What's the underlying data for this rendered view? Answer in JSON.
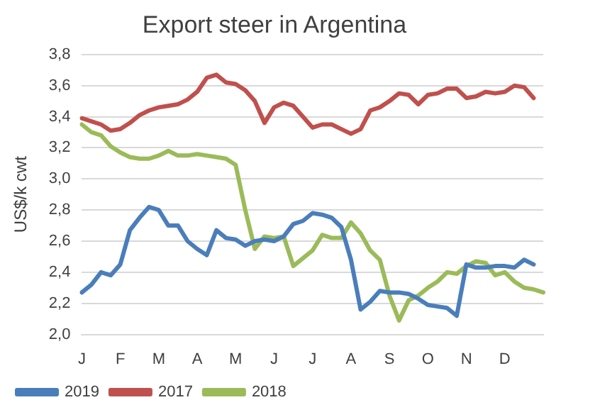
{
  "chart_data": {
    "type": "line",
    "title": "Export steer in Argentina",
    "ylabel": "US$/k cwt",
    "categories": [
      "J",
      null,
      null,
      null,
      "F",
      null,
      null,
      null,
      "M",
      null,
      null,
      null,
      "A",
      null,
      null,
      null,
      "M",
      null,
      null,
      null,
      "J",
      null,
      null,
      null,
      "J",
      null,
      null,
      null,
      "A",
      null,
      null,
      null,
      "S",
      null,
      null,
      null,
      "O",
      null,
      null,
      null,
      "N",
      null,
      null,
      null,
      "D",
      null,
      null,
      null,
      null
    ],
    "ylim": [
      2.0,
      3.8
    ],
    "yticks": [
      {
        "value": 2.0,
        "label": "2,0"
      },
      {
        "value": 2.2,
        "label": "2,2"
      },
      {
        "value": 2.4,
        "label": "2,4"
      },
      {
        "value": 2.6,
        "label": "2,6"
      },
      {
        "value": 2.8,
        "label": "2,8"
      },
      {
        "value": 3.0,
        "label": "3,0"
      },
      {
        "value": 3.2,
        "label": "3,2"
      },
      {
        "value": 3.4,
        "label": "3,4"
      },
      {
        "value": 3.6,
        "label": "3,6"
      },
      {
        "value": 3.8,
        "label": "3,8"
      }
    ],
    "grid": "y",
    "legend": "bottom",
    "marker": "none",
    "line_style": "solid",
    "series": [
      {
        "name": "2019",
        "color": "#4a7ebb",
        "values": [
          2.27,
          2.32,
          2.4,
          2.38,
          2.45,
          2.67,
          2.75,
          2.82,
          2.8,
          2.7,
          2.7,
          2.6,
          2.55,
          2.51,
          2.67,
          2.62,
          2.61,
          2.57,
          2.6,
          2.61,
          2.6,
          2.63,
          2.71,
          2.73,
          2.78,
          2.77,
          2.75,
          2.69,
          2.48,
          2.16,
          2.21,
          2.28,
          2.27,
          2.27,
          2.26,
          2.23,
          2.19,
          2.18,
          2.17,
          2.12,
          2.45,
          2.43,
          2.43,
          2.44,
          2.44,
          2.43,
          2.48,
          2.45,
          null
        ]
      },
      {
        "name": "2017",
        "color": "#c0504d",
        "values": [
          3.39,
          3.37,
          3.35,
          3.31,
          3.32,
          3.36,
          3.41,
          3.44,
          3.46,
          3.47,
          3.48,
          3.51,
          3.56,
          3.65,
          3.67,
          3.62,
          3.61,
          3.57,
          3.5,
          3.36,
          3.46,
          3.49,
          3.47,
          3.4,
          3.33,
          3.35,
          3.35,
          3.32,
          3.29,
          3.32,
          3.44,
          3.46,
          3.5,
          3.55,
          3.54,
          3.48,
          3.54,
          3.55,
          3.58,
          3.58,
          3.52,
          3.53,
          3.56,
          3.55,
          3.56,
          3.6,
          3.59,
          3.52,
          null
        ]
      },
      {
        "name": "2018",
        "color": "#9bbb59",
        "values": [
          3.35,
          3.3,
          3.28,
          3.21,
          3.17,
          3.14,
          3.13,
          3.13,
          3.15,
          3.18,
          3.15,
          3.15,
          3.16,
          3.15,
          3.14,
          3.13,
          3.09,
          2.8,
          2.55,
          2.63,
          2.62,
          2.63,
          2.44,
          2.49,
          2.54,
          2.64,
          2.62,
          2.62,
          2.72,
          2.65,
          2.54,
          2.48,
          2.25,
          2.09,
          2.22,
          2.25,
          2.3,
          2.34,
          2.4,
          2.39,
          2.44,
          2.47,
          2.46,
          2.38,
          2.4,
          2.34,
          2.3,
          2.29,
          2.27
        ]
      }
    ]
  }
}
